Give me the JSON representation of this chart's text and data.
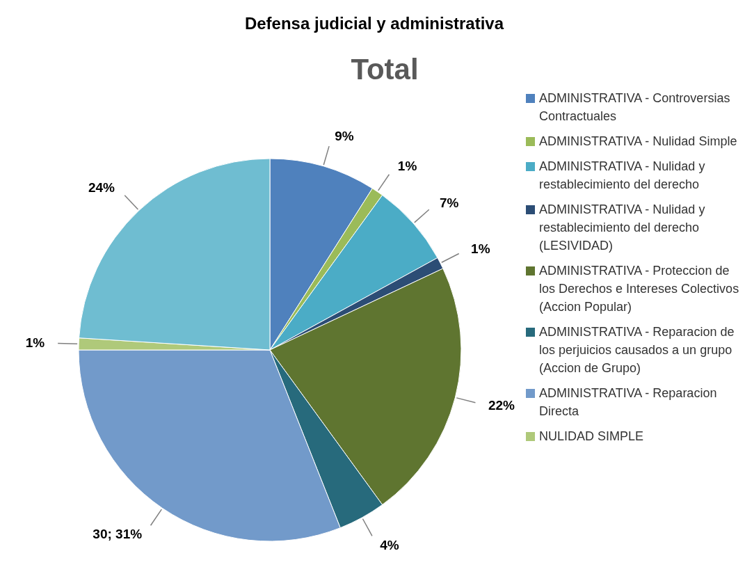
{
  "chart_data": {
    "type": "pie",
    "title": "Defensa judicial y administrativa",
    "subtitle": "Total",
    "categories": [
      "ADMINISTRATIVA - Controversias Contractuales",
      "ADMINISTRATIVA - Nulidad Simple",
      "ADMINISTRATIVA - Nulidad y restablecimiento del derecho",
      "ADMINISTRATIVA - Nulidad y restablecimiento del derecho (LESIVIDAD)",
      "ADMINISTRATIVA - Proteccion de los Derechos e Intereses Colectivos (Accion Popular)",
      "ADMINISTRATIVA - Reparacion de los perjuicios causados a un grupo (Accion de Grupo)",
      "ADMINISTRATIVA - Reparacion Directa",
      "NULIDAD SIMPLE",
      null
    ],
    "values": [
      9,
      1,
      7,
      1,
      22,
      4,
      31,
      1,
      24
    ],
    "value_labels": [
      "9%",
      "1%",
      "7%",
      "1%",
      "22%",
      "4%",
      "30; 31%",
      "1%",
      "24%"
    ],
    "colors": [
      "#4f81bd",
      "#9bbb59",
      "#4bacc6",
      "#2c4d75",
      "#5f7530",
      "#276a7c",
      "#729aca",
      "#afc97a",
      "#6fbdd1"
    ],
    "legend": "right"
  }
}
